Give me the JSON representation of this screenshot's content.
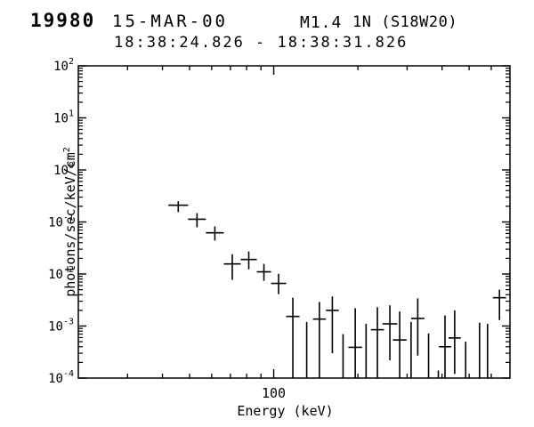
{
  "header": {
    "flare_number": "19980",
    "date": "15-MAR-00",
    "goes_class": "M1.4",
    "optical_class_location": "1N (S18W20)",
    "time_interval": "18:38:24.826 - 18:38:31.826"
  },
  "chart_data": {
    "type": "scatter",
    "title": "19980 15-MAR-00 M1.4 1N (S18W20)",
    "subtitle": "18:38:24.826 - 18:38:31.826",
    "xlabel": "Energy (keV)",
    "ylabel": "photons/sec/keV/cm^2",
    "marker": "cross-with-error-bars",
    "color": "#000000",
    "grid": false,
    "x_axis": {
      "scale": "log",
      "range": [
        20,
        700
      ],
      "major_ticks": [
        100
      ],
      "major_tick_labels": [
        "100"
      ],
      "minor_ticks": [
        30,
        40,
        50,
        60,
        70,
        80,
        90,
        200,
        300,
        400,
        500,
        600
      ]
    },
    "y_axis": {
      "scale": "log",
      "range": [
        0.0001,
        100
      ],
      "major_tick_exponents": [
        2,
        1,
        0,
        -1,
        -2,
        -3,
        -4
      ]
    },
    "points": [
      {
        "e_lo": 42,
        "e_hi": 49.4,
        "v": 0.21,
        "v_hi": 0.25,
        "v_lo": 0.155
      },
      {
        "e_lo": 49.4,
        "e_hi": 57.2,
        "v": 0.113,
        "v_hi": 0.148,
        "v_lo": 0.079
      },
      {
        "e_lo": 57.2,
        "e_hi": 66.3,
        "v": 0.062,
        "v_hi": 0.082,
        "v_lo": 0.044
      },
      {
        "e_lo": 66.3,
        "e_hi": 76.2,
        "v": 0.0156,
        "v_hi": 0.024,
        "v_lo": 0.0077
      },
      {
        "e_lo": 76.2,
        "e_hi": 87,
        "v": 0.019,
        "v_hi": 0.027,
        "v_lo": 0.0123
      },
      {
        "e_lo": 87,
        "e_hi": 97.8,
        "v": 0.011,
        "v_hi": 0.0156,
        "v_lo": 0.0074
      },
      {
        "e_lo": 97.8,
        "e_hi": 110.8,
        "v": 0.0066,
        "v_hi": 0.0101,
        "v_lo": 0.0041
      },
      {
        "e_lo": 110.8,
        "e_hi": 123.7,
        "v": 0.00153,
        "v_hi": 0.0035,
        "v_lo": null
      },
      {
        "e": 131.2,
        "v": null,
        "v_hi": 0.0012,
        "v_lo": null
      },
      {
        "e_lo": 138.1,
        "e_hi": 153.7,
        "v": 0.00136,
        "v_hi": 0.0029,
        "v_lo": null
      },
      {
        "e_lo": 153.7,
        "e_hi": 170.9,
        "v": 0.002,
        "v_hi": 0.0037,
        "v_lo": 0.0003
      },
      {
        "e": 177,
        "v": null,
        "v_hi": 0.0007,
        "v_lo": null
      },
      {
        "e_lo": 185,
        "e_hi": 207,
        "v": 0.00039,
        "v_hi": 0.0022,
        "v_lo": null
      },
      {
        "e": 214,
        "v": null,
        "v_hi": 0.0011,
        "v_lo": null
      },
      {
        "e_lo": 222.5,
        "e_hi": 248,
        "v": 0.00085,
        "v_hi": 0.0023,
        "v_lo": null
      },
      {
        "e_lo": 245,
        "e_hi": 276.6,
        "v": 0.0011,
        "v_hi": 0.0025,
        "v_lo": 0.00022
      },
      {
        "e_lo": 266.8,
        "e_hi": 298.6,
        "v": 0.00054,
        "v_hi": 0.0019,
        "v_lo": null
      },
      {
        "e": 310,
        "v": null,
        "v_hi": 0.0012,
        "v_lo": null
      },
      {
        "e_lo": 310,
        "e_hi": 346,
        "v": 0.0014,
        "v_hi": 0.0034,
        "v_lo": 0.00027
      },
      {
        "e": 358,
        "v": null,
        "v_hi": 0.00072,
        "v_lo": null
      },
      {
        "e": 388,
        "v": null,
        "v_hi": 0.00014,
        "v_lo": null
      },
      {
        "e_lo": 390,
        "e_hi": 431,
        "v": 0.0004,
        "v_hi": 0.0016,
        "v_lo": null
      },
      {
        "e_lo": 422,
        "e_hi": 467,
        "v": 0.00059,
        "v_hi": 0.002,
        "v_lo": 0.00012
      },
      {
        "e": 486,
        "v": null,
        "v_hi": 0.0005,
        "v_lo": null
      },
      {
        "e": 545,
        "v": null,
        "v_hi": 0.00116,
        "v_lo": null
      },
      {
        "e": 582,
        "v": null,
        "v_hi": 0.0011,
        "v_lo": null
      },
      {
        "e_lo": 608,
        "e_hi": 678,
        "v": 0.0035,
        "v_hi": 0.005,
        "v_lo": 0.0013
      }
    ]
  }
}
